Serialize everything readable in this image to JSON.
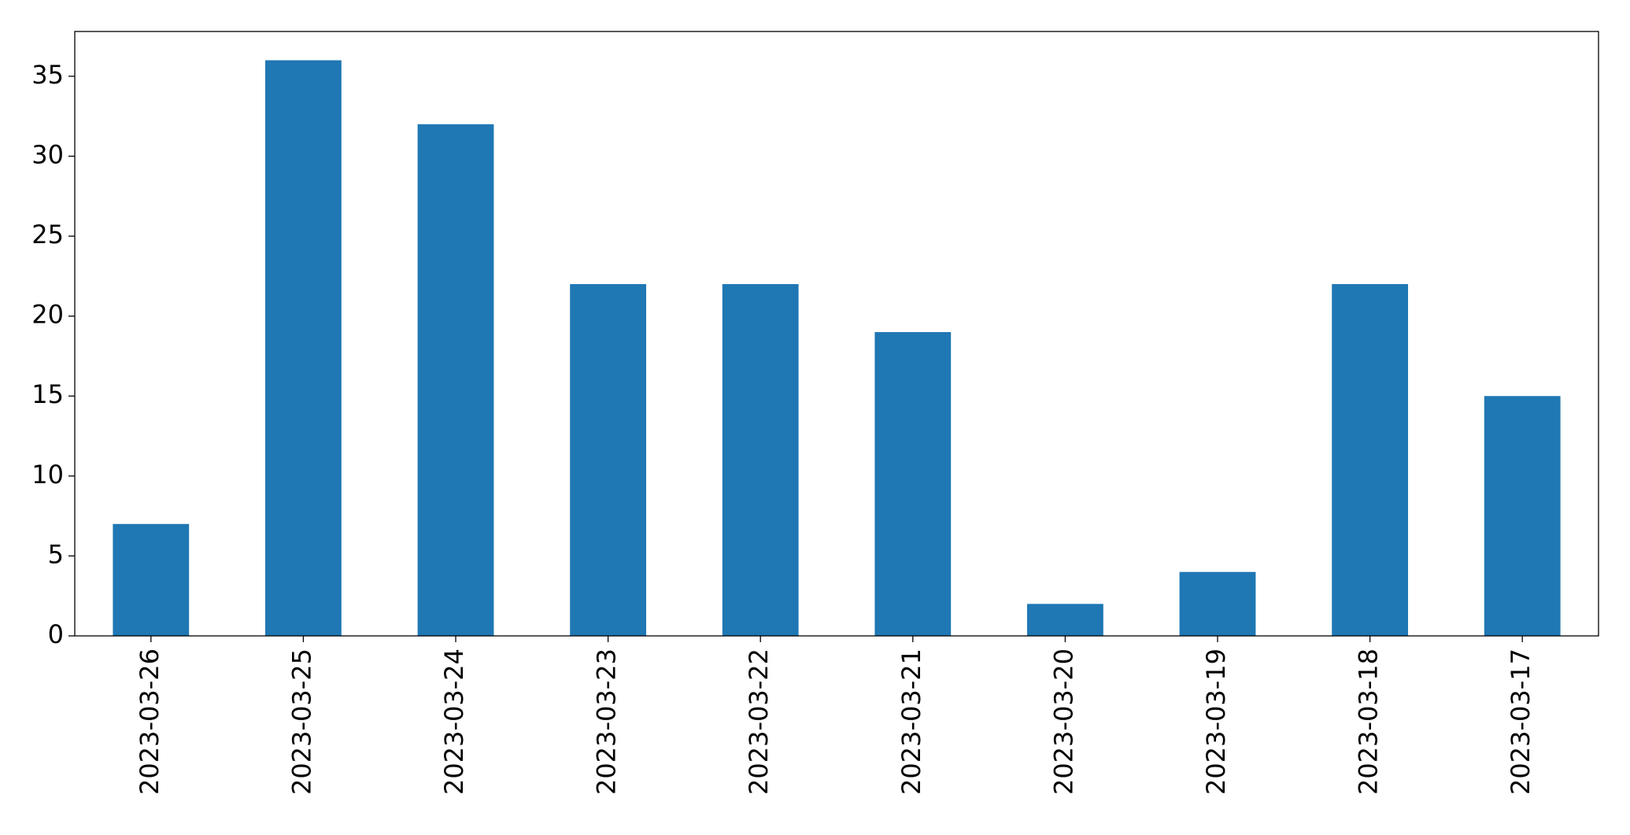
{
  "chart_data": {
    "type": "bar",
    "categories": [
      "2023-03-26",
      "2023-03-25",
      "2023-03-24",
      "2023-03-23",
      "2023-03-22",
      "2023-03-21",
      "2023-03-20",
      "2023-03-19",
      "2023-03-18",
      "2023-03-17"
    ],
    "values": [
      7,
      36,
      32,
      22,
      22,
      19,
      2,
      4,
      22,
      15
    ],
    "color": "#1f77b4",
    "ylim": [
      0,
      37.8
    ],
    "yticks": [
      0,
      5,
      10,
      15,
      20,
      25,
      30,
      35
    ],
    "grid": false
  }
}
